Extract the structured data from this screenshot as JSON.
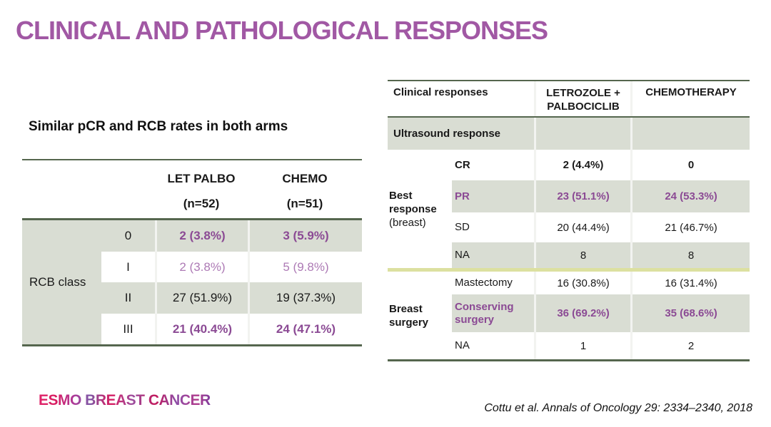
{
  "slide": {
    "title": "CLINICAL AND PATHOLOGICAL RESPONSES",
    "footer_logo": "ESMO BREAST CANCER",
    "citation": "Cottu et al. Annals of Oncology 29: 2334–2340, 2018"
  },
  "colors": {
    "title_purple": "#a158a4",
    "value_purple_bold": "#8b4a94",
    "value_purple_light": "#ad7ab5",
    "row_gray": "#d9ddd3",
    "line_green": "#55664e",
    "line_yellow": "#dce0a0"
  },
  "left_table": {
    "caption": "Similar pCR and RCB rates in both arms",
    "col_headers": [
      {
        "line1": "LET PALBO",
        "line2": "(n=52)"
      },
      {
        "line1": "CHEMO",
        "line2": "(n=51)"
      }
    ],
    "group_label": "RCB class",
    "rows": [
      {
        "label": "0",
        "let_palbo": "2 (3.8%)",
        "chemo": "3 (5.9%)"
      },
      {
        "label": "I",
        "let_palbo": "2 (3.8%)",
        "chemo": "5 (9.8%)"
      },
      {
        "label": "II",
        "let_palbo": "27 (51.9%)",
        "chemo": "19 (37.3%)"
      },
      {
        "label": "III",
        "let_palbo": "21 (40.4%)",
        "chemo": "24 (47.1%)"
      }
    ]
  },
  "right_table": {
    "headers": {
      "col1": "Clinical responses",
      "col2_line1": "LETROZOLE +",
      "col2_line2": "PALBOCICLIB",
      "col3": "CHEMOTHERAPY"
    },
    "section_header": "Ultrasound response",
    "groups": [
      {
        "label_bold": "Best",
        "label_bold2": "response",
        "label_note": "(breast)",
        "rows": [
          {
            "label": "CR",
            "v1": "2 (4.4%)",
            "v2": "0"
          },
          {
            "label": "PR",
            "v1": "23 (51.1%)",
            "v2": "24 (53.3%)"
          },
          {
            "label": "SD",
            "v1": "20 (44.4%)",
            "v2": "21 (46.7%)"
          },
          {
            "label": "NA",
            "v1": "8",
            "v2": "8"
          }
        ]
      },
      {
        "label_bold": "Breast",
        "label_bold2": "surgery",
        "rows": [
          {
            "label": "Mastectomy",
            "v1": "16 (30.8%)",
            "v2": "16 (31.4%)"
          },
          {
            "label": "Conserving surgery",
            "v1": "36 (69.2%)",
            "v2": "35 (68.6%)"
          },
          {
            "label": "NA",
            "v1": "1",
            "v2": "2"
          }
        ]
      }
    ]
  }
}
